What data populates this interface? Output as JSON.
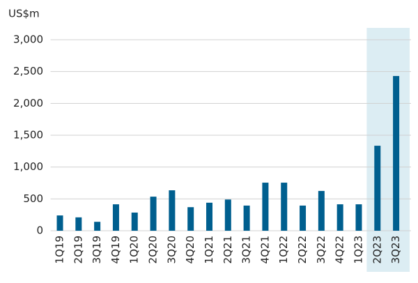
{
  "chart_data": {
    "type": "bar",
    "y_label": "US$m",
    "categories": [
      "1Q19",
      "2Q19",
      "3Q19",
      "4Q19",
      "1Q20",
      "2Q20",
      "3Q20",
      "4Q20",
      "1Q21",
      "2Q21",
      "3Q21",
      "4Q21",
      "1Q22",
      "2Q22",
      "3Q22",
      "4Q22",
      "1Q23",
      "2Q23",
      "3Q23"
    ],
    "values": [
      240,
      210,
      140,
      415,
      285,
      535,
      635,
      370,
      440,
      490,
      395,
      755,
      755,
      395,
      625,
      415,
      415,
      1335,
      2430
    ],
    "color": "#005f8f",
    "ylim": [
      0,
      3000
    ],
    "yticks": [
      0,
      {
        "value": 500,
        "label": "500"
      },
      {
        "value": 1000,
        "label": "1,000"
      },
      {
        "value": 1500,
        "label": "1,500"
      },
      {
        "value": 2000,
        "label": "2,000"
      },
      {
        "value": 2500,
        "label": "2,500"
      },
      {
        "value": 3000,
        "label": "3,000"
      }
    ],
    "grid": true,
    "highlight_range": [
      17,
      18
    ],
    "highlight_color": "#dcedf3"
  }
}
